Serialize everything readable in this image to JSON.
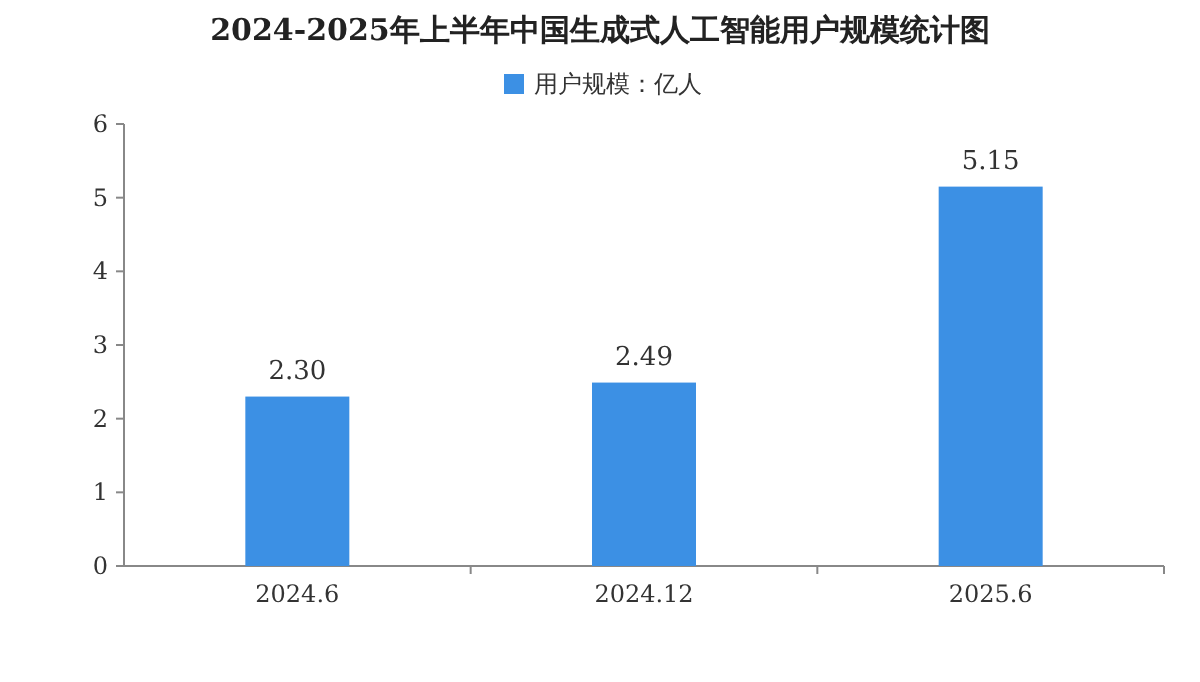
{
  "chart_data": {
    "type": "bar",
    "title": "2024-2025年上半年中国生成式人工智能用户规模统计图",
    "categories": [
      "2024.6",
      "2024.12",
      "2025.6"
    ],
    "series": [
      {
        "name": "用户规模：亿人",
        "color": "#3c90e4",
        "values": [
          2.3,
          2.49,
          5.15
        ],
        "value_labels": [
          "2.30",
          "2.49",
          "5.15"
        ]
      }
    ],
    "ylim": [
      0,
      6
    ],
    "yticks": [
      0,
      1,
      2,
      3,
      4,
      5,
      6
    ],
    "legend": "top",
    "grid": false
  }
}
